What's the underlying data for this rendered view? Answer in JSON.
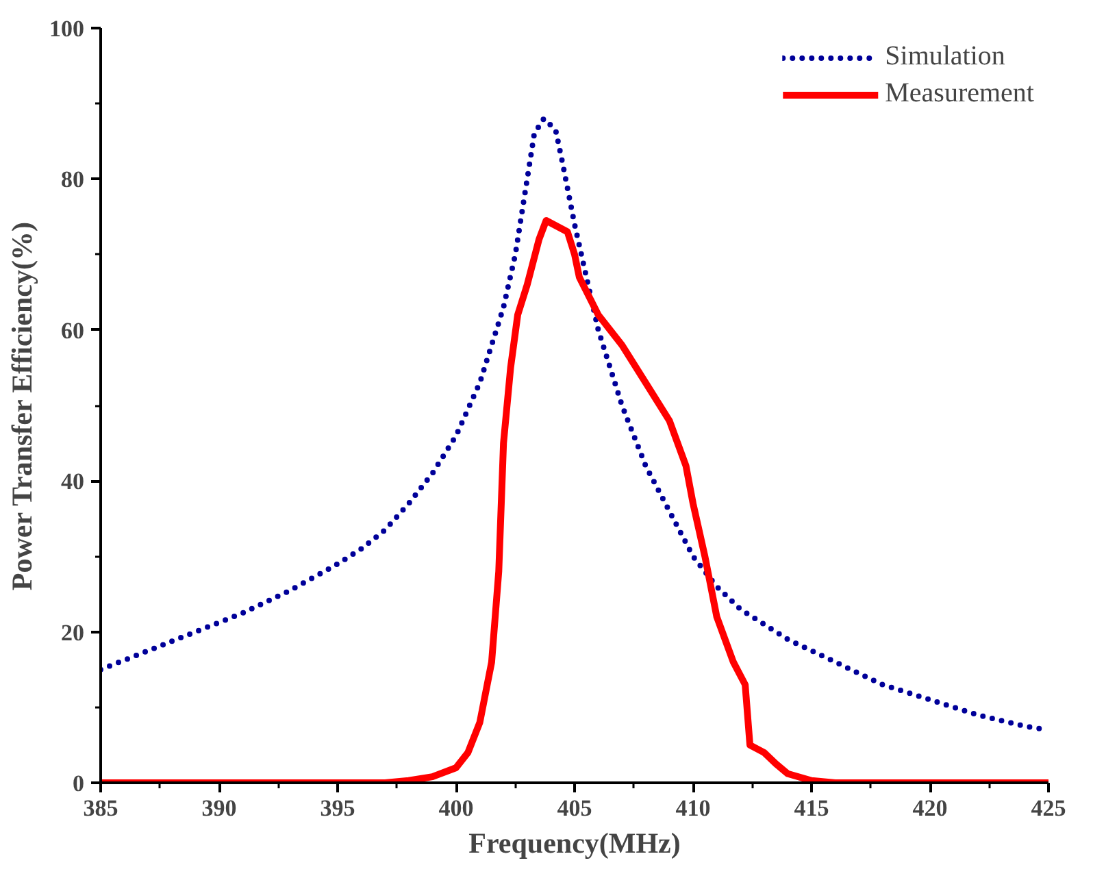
{
  "chart_data": {
    "type": "line",
    "xlabel": "Frequency(MHz)",
    "ylabel": "Power Transfer Efficiency(%)",
    "xlim": [
      385,
      425
    ],
    "ylim": [
      0,
      100
    ],
    "xticks": [
      385,
      390,
      395,
      400,
      405,
      410,
      415,
      420,
      425
    ],
    "yticks": [
      0,
      20,
      40,
      60,
      80,
      100
    ],
    "grid": false,
    "legend": "top right",
    "marker": "none",
    "series": [
      {
        "name": "Simulation",
        "color": "#000099",
        "line_style": "dotted",
        "x": [
          385,
          387,
          389,
          391,
          393,
          395,
          396,
          397,
          398,
          399,
          400,
          401,
          402,
          402.5,
          403,
          403.3,
          403.7,
          404.2,
          404.5,
          405,
          405.5,
          406,
          407,
          408,
          409,
          410,
          411,
          412,
          414,
          416,
          418,
          420,
          422,
          424,
          425
        ],
        "values": [
          15,
          17.5,
          20,
          22.5,
          25.5,
          29,
          31,
          33.5,
          37,
          41,
          46,
          53,
          63,
          70,
          80,
          86,
          88,
          86.5,
          82,
          74,
          67,
          60,
          50,
          42,
          36,
          30,
          26,
          23,
          19,
          16,
          13,
          11,
          9,
          7.5,
          7
        ]
      },
      {
        "name": "Measurement",
        "color": "#ff0000",
        "line_style": "solid",
        "x": [
          385,
          397,
          398,
          399,
          400,
          400.5,
          401,
          401.5,
          401.8,
          402,
          402.3,
          402.6,
          403,
          403.5,
          403.8,
          404.7,
          405,
          405.2,
          406,
          407,
          408,
          409,
          409.7,
          410,
          410.5,
          411,
          411.7,
          412.2,
          412.4,
          413,
          413.5,
          414,
          415,
          416,
          425
        ],
        "values": [
          0,
          0,
          0.3,
          0.8,
          2,
          4,
          8,
          16,
          28,
          45,
          55,
          62,
          66,
          72,
          74.5,
          73,
          70,
          67,
          62,
          58,
          53,
          48,
          42,
          37,
          30,
          22,
          16,
          13,
          5,
          4,
          2.5,
          1.2,
          0.3,
          0,
          0
        ]
      }
    ]
  }
}
